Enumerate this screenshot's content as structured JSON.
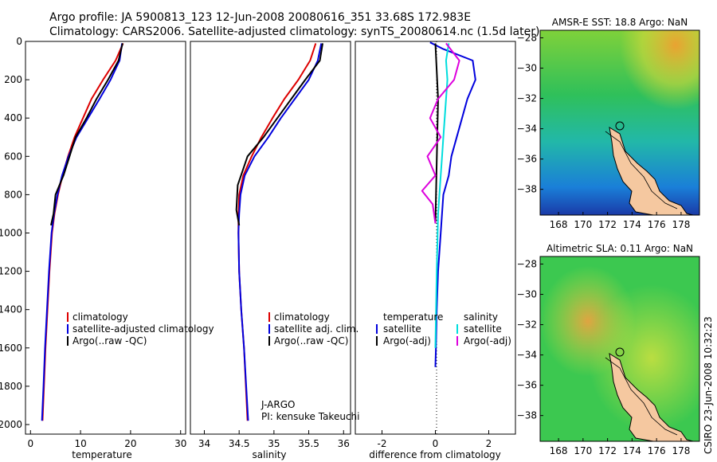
{
  "header": {
    "title_line1": "Argo profile: JA 5900813_123 12-Jun-2008 20080616_351 33.68S 172.983E",
    "title_line2": "Climatology: CARS2006. Satellite-adjusted climatology: synTS_20080614.nc (1.5d later)"
  },
  "side_label": "CSIRO 23-Jun-2008 10:32:23",
  "colors": {
    "climatology": "#dd0000",
    "satellite": "#0000dd",
    "argo": "#000000",
    "sal_satellite": "#00dddd",
    "sal_argo": "#dd00dd",
    "land": "#f5c8a0"
  },
  "chart_data": [
    {
      "type": "line",
      "xlabel": "temperature",
      "xlim": [
        -1,
        31
      ],
      "ylim": [
        2050,
        0
      ],
      "xticks": [
        0,
        10,
        20,
        30
      ],
      "yticks": [
        0,
        200,
        400,
        600,
        800,
        1000,
        1200,
        1400,
        1600,
        1800,
        2000
      ],
      "legend": [
        "climatology",
        "satellite-adjusted climatology",
        "Argo(..raw -QC)"
      ],
      "series": [
        {
          "name": "climatology",
          "color": "red",
          "x": [
            18.5,
            17.0,
            14.5,
            12.2,
            10.5,
            8.8,
            7.5,
            6.4,
            5.5,
            4.8,
            4.3,
            3.8,
            3.4,
            3.0,
            2.7,
            2.4
          ],
          "y": [
            10,
            100,
            200,
            300,
            400,
            500,
            600,
            700,
            800,
            900,
            1000,
            1200,
            1400,
            1600,
            1800,
            1980
          ]
        },
        {
          "name": "satellite-adjusted climatology",
          "color": "blue",
          "x": [
            18.3,
            17.8,
            16.0,
            13.8,
            11.5,
            9.2,
            7.6,
            6.3,
            5.4,
            4.7,
            4.2,
            3.7,
            3.3,
            2.9,
            2.6,
            2.3
          ],
          "y": [
            10,
            100,
            200,
            300,
            400,
            500,
            600,
            700,
            800,
            900,
            1000,
            1200,
            1400,
            1600,
            1800,
            1980
          ]
        },
        {
          "name": "Argo(..raw -QC)",
          "color": "black",
          "x": [
            18.4,
            17.6,
            15.5,
            13.2,
            11.2,
            9.0,
            7.8,
            6.6,
            5.0,
            4.6,
            4.1
          ],
          "y": [
            10,
            100,
            200,
            300,
            400,
            500,
            600,
            700,
            800,
            900,
            960
          ]
        }
      ]
    },
    {
      "type": "line",
      "xlabel": "salinity",
      "xlim": [
        33.8,
        36.1
      ],
      "ylim": [
        2050,
        0
      ],
      "xticks": [
        34,
        34.5,
        35,
        35.5,
        36
      ],
      "legend": [
        "climatology",
        "satellite adj. clim.",
        "Argo(..raw -QC)"
      ],
      "annotation_line1": "J-ARGO",
      "annotation_line2": "PI: kensuke Takeuchi",
      "series": [
        {
          "name": "climatology",
          "color": "red",
          "x": [
            35.6,
            35.52,
            35.35,
            35.15,
            34.98,
            34.82,
            34.68,
            34.56,
            34.5,
            34.49,
            34.49,
            34.5,
            34.53,
            34.57,
            34.62
          ],
          "y": [
            10,
            100,
            200,
            300,
            400,
            500,
            600,
            700,
            800,
            900,
            1000,
            1200,
            1400,
            1600,
            1980
          ]
        },
        {
          "name": "satellite adj. clim.",
          "color": "blue",
          "x": [
            35.68,
            35.63,
            35.5,
            35.3,
            35.1,
            34.92,
            34.72,
            34.58,
            34.52,
            34.5,
            34.49,
            34.5,
            34.53,
            34.57,
            34.63
          ],
          "y": [
            10,
            100,
            200,
            300,
            400,
            500,
            600,
            700,
            800,
            900,
            1000,
            1200,
            1400,
            1600,
            1980
          ]
        },
        {
          "name": "Argo(..raw -QC)",
          "color": "black",
          "x": [
            35.7,
            35.66,
            35.45,
            35.25,
            35.05,
            34.85,
            34.62,
            34.48,
            34.46,
            34.5
          ],
          "y": [
            10,
            100,
            200,
            300,
            400,
            500,
            600,
            750,
            880,
            960
          ]
        }
      ]
    },
    {
      "type": "line",
      "xlabel": "difference from climatology",
      "xlim": [
        -3,
        3
      ],
      "ylim": [
        2050,
        0
      ],
      "xticks": [
        -2,
        0,
        2
      ],
      "legend_left_title": "temperature",
      "legend_left": [
        "satellite",
        "Argo(-adj)"
      ],
      "legend_right_title": "salinity",
      "legend_right": [
        "satellite",
        "Argo(-adj)"
      ],
      "series": [
        {
          "name": "temperature satellite",
          "color": "blue",
          "x": [
            -0.2,
            0.3,
            1.4,
            1.5,
            1.2,
            1.0,
            0.8,
            0.6,
            0.5,
            0.3,
            0.2,
            0.1,
            0.05,
            0.02,
            0.0
          ],
          "y": [
            5,
            40,
            100,
            200,
            300,
            400,
            500,
            600,
            700,
            800,
            1000,
            1200,
            1400,
            1600,
            1700
          ]
        },
        {
          "name": "temperature Argo(-adj)",
          "color": "black",
          "x": [
            0.0,
            0.1,
            0.0
          ],
          "y": [
            10,
            300,
            950
          ]
        },
        {
          "name": "salinity satellite",
          "color": "cyan",
          "x": [
            0.5,
            0.4,
            0.45,
            0.4,
            0.35,
            0.3,
            0.25,
            0.2,
            0.1,
            0.05,
            0.0
          ],
          "y": [
            10,
            100,
            200,
            300,
            400,
            500,
            600,
            700,
            900,
            1200,
            1600
          ]
        },
        {
          "name": "salinity Argo(-adj)",
          "color": "magenta",
          "x": [
            0.4,
            0.9,
            0.7,
            0.1,
            -0.2,
            0.2,
            -0.3,
            0.0,
            -0.5,
            -0.1,
            0.0
          ],
          "y": [
            10,
            100,
            200,
            300,
            400,
            500,
            600,
            700,
            780,
            850,
            950
          ]
        }
      ]
    },
    {
      "type": "heatmap",
      "title": "AMSR-E SST: 18.8 Argo: NaN",
      "xticks": [
        168,
        170,
        172,
        174,
        176,
        178
      ],
      "yticks": [
        -28,
        -30,
        -32,
        -34,
        -36,
        -38
      ],
      "xlim": [
        166.5,
        179.5
      ],
      "ylim": [
        -39.7,
        -27.5
      ],
      "marker": {
        "lon": 172.983,
        "lat": -33.68
      }
    },
    {
      "type": "heatmap",
      "title": "Altimetric SLA: 0.11 Argo: NaN",
      "xticks": [
        168,
        170,
        172,
        174,
        176,
        178
      ],
      "yticks": [
        -28,
        -30,
        -32,
        -34,
        -36,
        -38
      ],
      "xlim": [
        166.5,
        179.5
      ],
      "ylim": [
        -39.7,
        -27.5
      ],
      "marker": {
        "lon": 172.983,
        "lat": -33.68
      }
    }
  ]
}
